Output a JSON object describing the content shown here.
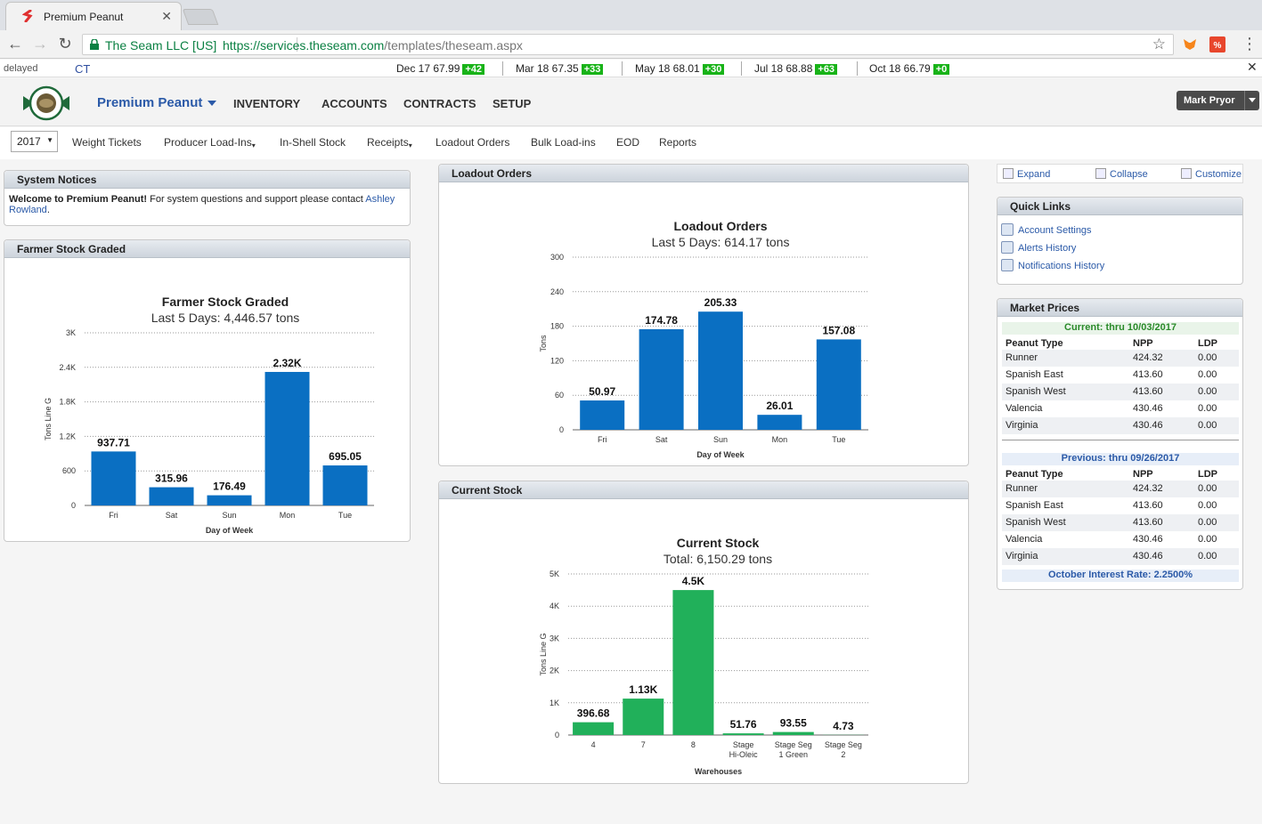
{
  "browser": {
    "tab_title": "Premium Peanut",
    "tab_close": "✕",
    "secure_label": "The Seam LLC [US]",
    "url_base": "https://services.theseam.com",
    "url_path": "/templates/theseam.aspx"
  },
  "ticker": {
    "delayed": "delayed",
    "unit": "CT",
    "quotes": [
      {
        "label": "Dec 17 67.99",
        "change": "+42"
      },
      {
        "label": "Mar 18 67.35",
        "change": "+33"
      },
      {
        "label": "May 18 68.01",
        "change": "+30"
      },
      {
        "label": "Jul 18 68.88",
        "change": "+63"
      },
      {
        "label": "Oct 18 66.79",
        "change": "+0"
      }
    ],
    "close": "✕"
  },
  "header": {
    "brand": "Premium Peanut",
    "nav": [
      "INVENTORY",
      "ACCOUNTS",
      "CONTRACTS",
      "SETUP"
    ],
    "user": "Mark Pryor"
  },
  "subnav": {
    "year": "2017",
    "items": [
      "Weight Tickets",
      "Producer Load-Ins",
      "In-Shell Stock",
      "Receipts",
      "Loadout Orders",
      "Bulk Load-ins",
      "EOD",
      "Reports"
    ]
  },
  "notices": {
    "title": "System Notices",
    "welcome": "Welcome to Premium Peanut!",
    "body": " For system questions and support please contact ",
    "contact": "Ashley Rowland",
    "end": "."
  },
  "panels": {
    "farmer": "Farmer Stock Graded",
    "loadout": "Loadout Orders",
    "stock": "Current Stock"
  },
  "toolbar": {
    "expand": "Expand",
    "collapse": "Collapse",
    "customize": "Customize"
  },
  "quick_links": {
    "title": "Quick Links",
    "items": [
      "Account Settings",
      "Alerts History",
      "Notifications History"
    ]
  },
  "market": {
    "title": "Market Prices",
    "current_label": "Current: thru 10/03/2017",
    "previous_label": "Previous: thru 09/26/2017",
    "headers": [
      "Peanut Type",
      "NPP",
      "LDP"
    ],
    "current": [
      [
        "Runner",
        "424.32",
        "0.00"
      ],
      [
        "Spanish East",
        "413.60",
        "0.00"
      ],
      [
        "Spanish West",
        "413.60",
        "0.00"
      ],
      [
        "Valencia",
        "430.46",
        "0.00"
      ],
      [
        "Virginia",
        "430.46",
        "0.00"
      ]
    ],
    "previous": [
      [
        "Runner",
        "424.32",
        "0.00"
      ],
      [
        "Spanish East",
        "413.60",
        "0.00"
      ],
      [
        "Spanish West",
        "413.60",
        "0.00"
      ],
      [
        "Valencia",
        "430.46",
        "0.00"
      ],
      [
        "Virginia",
        "430.46",
        "0.00"
      ]
    ],
    "interest": "October Interest Rate: 2.2500%"
  },
  "colors": {
    "blue_bar": "#0a6fc2",
    "green_bar": "#21b05a",
    "ticker_up": "#18b318",
    "brand": "#2b5aa8"
  },
  "chart_data": [
    {
      "type": "bar",
      "title": "Farmer Stock Graded",
      "subtitle": "Last 5 Days: 4,446.57 tons",
      "xlabel": "Day of Week",
      "ylabel": "Tons Line G",
      "categories": [
        "Fri",
        "Sat",
        "Sun",
        "Mon",
        "Tue"
      ],
      "values": [
        937.71,
        315.96,
        176.49,
        2320,
        695.05
      ],
      "labels": [
        "937.71",
        "315.96",
        "176.49",
        "2.32K",
        "695.05"
      ],
      "yticks": [
        "0",
        "600",
        "1.2K",
        "1.8K",
        "2.4K",
        "3K"
      ],
      "ylim": [
        0,
        3000
      ],
      "grid": true
    },
    {
      "type": "bar",
      "title": "Loadout Orders",
      "subtitle": "Last 5 Days: 614.17 tons",
      "xlabel": "Day of Week",
      "ylabel": "Tons",
      "categories": [
        "Fri",
        "Sat",
        "Sun",
        "Mon",
        "Tue"
      ],
      "values": [
        50.97,
        174.78,
        205.33,
        26.01,
        157.08
      ],
      "labels": [
        "50.97",
        "174.78",
        "205.33",
        "26.01",
        "157.08"
      ],
      "yticks": [
        "0",
        "60",
        "120",
        "180",
        "240",
        "300"
      ],
      "ylim": [
        0,
        300
      ],
      "grid": true
    },
    {
      "type": "bar",
      "title": "Current Stock",
      "subtitle": "Total: 6,150.29 tons",
      "xlabel": "Warehouses",
      "ylabel": "Tons Line G",
      "categories": [
        [
          "4"
        ],
        [
          "7"
        ],
        [
          "8"
        ],
        [
          "Stage",
          "Hi-Oleic"
        ],
        [
          "Stage Seg",
          "1 Green"
        ],
        [
          "Stage Seg",
          "2"
        ]
      ],
      "values": [
        396.68,
        1130,
        4500,
        51.76,
        93.55,
        4.73
      ],
      "labels": [
        "396.68",
        "1.13K",
        "4.5K",
        "51.76",
        "93.55",
        "4.73"
      ],
      "yticks": [
        "0",
        "1K",
        "2K",
        "3K",
        "4K",
        "5K"
      ],
      "ylim": [
        0,
        5000
      ],
      "grid": true
    }
  ]
}
